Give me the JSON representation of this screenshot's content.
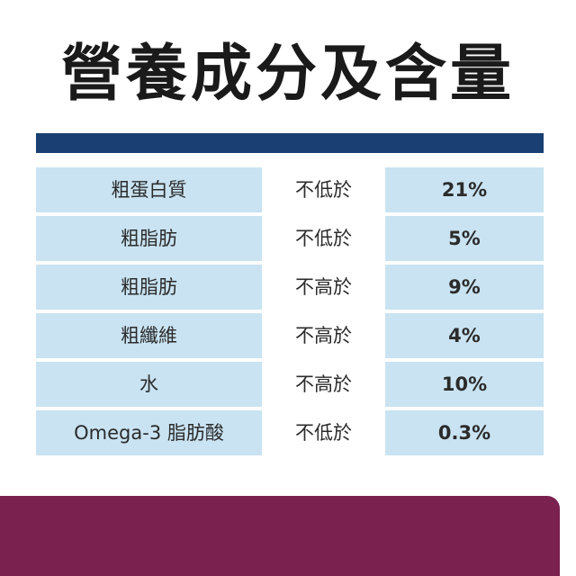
{
  "title": "營養成分及含量",
  "colors": {
    "title_rule": "#193f73",
    "cell_tint": "#c9e3f2",
    "bottom_panel": "#7a2150"
  },
  "rows": [
    {
      "name": "粗蛋白質",
      "qualifier": "不低於",
      "value": "21%"
    },
    {
      "name": "粗脂肪",
      "qualifier": "不低於",
      "value": "5%"
    },
    {
      "name": "粗脂肪",
      "qualifier": "不高於",
      "value": "9%"
    },
    {
      "name": "粗纖維",
      "qualifier": "不高於",
      "value": "4%"
    },
    {
      "name": "水",
      "qualifier": "不高於",
      "value": "10%"
    },
    {
      "name": "Omega-3 脂肪酸",
      "qualifier": "不低於",
      "value": "0.3%"
    }
  ]
}
